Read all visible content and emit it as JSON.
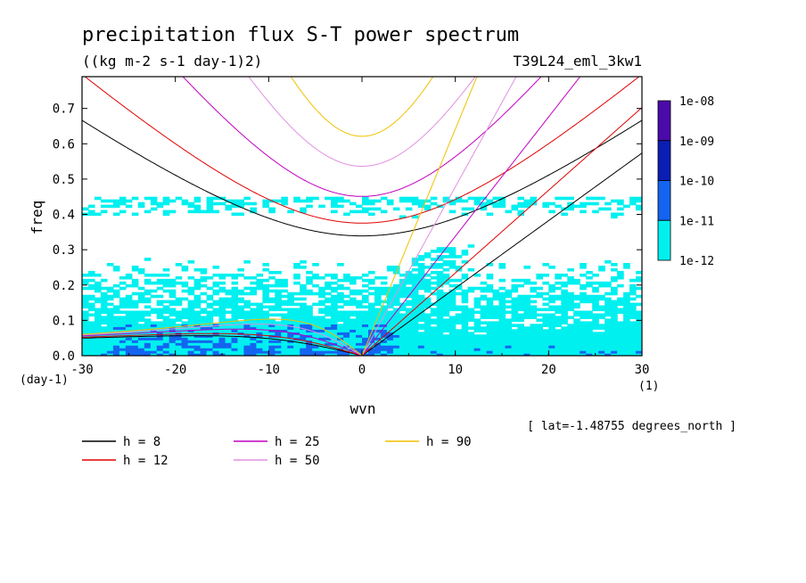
{
  "chart_data": {
    "type": "heatmap",
    "title": "precipitation flux S-T power spectrum",
    "subtitle": "((kg m-2 s-1 day-1)2)",
    "experiment": "T39L24_eml_3kw1",
    "xlabel": "wvn",
    "xunits": "(1)",
    "ylabel": "freq",
    "yunits": "(day-1)",
    "xlim": [
      -30,
      30
    ],
    "ylim": [
      0,
      0.79
    ],
    "xticks": [
      "-30",
      "-20",
      "-10",
      "0",
      "10",
      "20",
      "30"
    ],
    "yticks": [
      "0.0",
      "0.1",
      "0.2",
      "0.3",
      "0.4",
      "0.5",
      "0.6",
      "0.7"
    ],
    "annotation": "[ lat=-1.48755 degrees_north ]",
    "colorbar": {
      "labels": [
        "1e-08",
        "1e-09",
        "1e-10",
        "1e-11",
        "1e-12"
      ],
      "colors": [
        "#4b0aaa",
        "#0a1eb4",
        "#1464f0",
        "#00f0f0"
      ]
    },
    "series": [
      {
        "name": "h = 8",
        "color": "#000000"
      },
      {
        "name": "h = 12",
        "color": "#e00000"
      },
      {
        "name": "h = 25",
        "color": "#c000c0"
      },
      {
        "name": "h = 50",
        "color": "#e090e0"
      },
      {
        "name": "h = 90",
        "color": "#f0c000"
      }
    ],
    "field_colors": [
      "#00f0f0",
      "#1464f0"
    ]
  }
}
